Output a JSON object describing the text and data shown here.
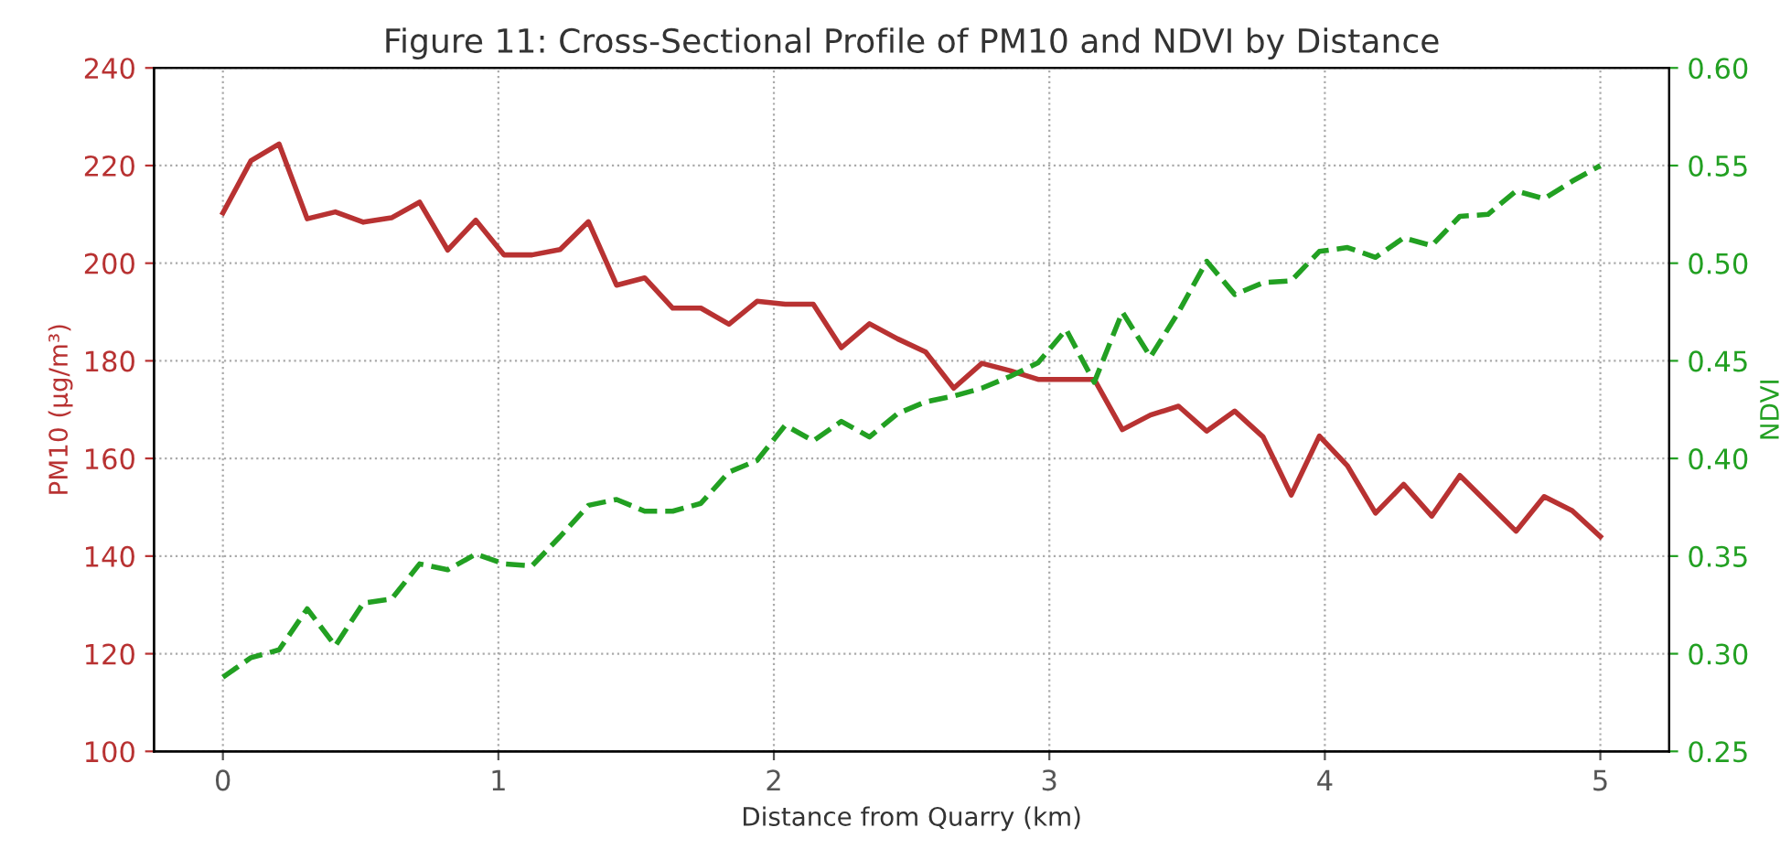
{
  "chart_data": {
    "type": "line",
    "title": "Figure 11: Cross-Sectional Profile of PM10 and NDVI by Distance",
    "xlabel": "Distance from Quarry (km)",
    "ylabel": "PM10 (µg/m³)",
    "y2label": "NDVI",
    "x": [
      0,
      0.102,
      0.204,
      0.306,
      0.408,
      0.51,
      0.612,
      0.714,
      0.816,
      0.918,
      1.02,
      1.122,
      1.224,
      1.327,
      1.429,
      1.531,
      1.633,
      1.735,
      1.837,
      1.939,
      2.041,
      2.143,
      2.245,
      2.347,
      2.449,
      2.551,
      2.653,
      2.755,
      2.857,
      2.959,
      3.061,
      3.163,
      3.265,
      3.367,
      3.469,
      3.571,
      3.673,
      3.776,
      3.878,
      3.98,
      4.082,
      4.184,
      4.286,
      4.388,
      4.49,
      4.592,
      4.694,
      4.796,
      4.898,
      5
    ],
    "series": [
      {
        "color": "#b83232",
        "line_style": "solid",
        "values": [
          210.3,
          221,
          224.4,
          209.1,
          210.5,
          208.4,
          209.3,
          212.5,
          202.7,
          208.8,
          201.7,
          201.7,
          202.8,
          208.5,
          195.5,
          197,
          190.8,
          190.8,
          187.5,
          192.2,
          191.6,
          191.6,
          182.7,
          187.6,
          184.5,
          181.8,
          174.4,
          179.5,
          178,
          176.2,
          176.2,
          176.2,
          165.9,
          168.9,
          170.7,
          165.6,
          169.7,
          164.4,
          152.5,
          164.6,
          158.5,
          148.8,
          154.7,
          148.2,
          156.5,
          150.8,
          145.1,
          152.2,
          149.3,
          144
        ]
      },
      {
        "color": "#22a022",
        "line_style": "dashed",
        "axis": "y2",
        "values": [
          0.288,
          0.298,
          0.302,
          0.323,
          0.304,
          0.326,
          0.328,
          0.346,
          0.343,
          0.351,
          0.346,
          0.345,
          0.36,
          0.376,
          0.379,
          0.373,
          0.373,
          0.377,
          0.393,
          0.399,
          0.417,
          0.409,
          0.419,
          0.411,
          0.423,
          0.429,
          0.432,
          0.436,
          0.442,
          0.449,
          0.466,
          0.439,
          0.475,
          0.452,
          0.475,
          0.501,
          0.484,
          0.49,
          0.491,
          0.506,
          0.508,
          0.503,
          0.513,
          0.509,
          0.524,
          0.525,
          0.537,
          0.533,
          0.542,
          0.55
        ]
      }
    ],
    "xlim": [
      -0.25,
      5.25
    ],
    "xticks": [
      0,
      1,
      2,
      3,
      4,
      5
    ],
    "ylim": [
      100,
      240
    ],
    "yticks": [
      100,
      120,
      140,
      160,
      180,
      200,
      220,
      240
    ],
    "y2lim": [
      0.25,
      0.6
    ],
    "y2ticks": [
      {
        "value": 0.25,
        "label": "0.25"
      },
      {
        "value": 0.3,
        "label": "0.30"
      },
      {
        "value": 0.35,
        "label": "0.35"
      },
      {
        "value": 0.4,
        "label": "0.40"
      },
      {
        "value": 0.45,
        "label": "0.45"
      },
      {
        "value": 0.5,
        "label": "0.50"
      },
      {
        "value": 0.55,
        "label": "0.55"
      },
      {
        "value": 0.6,
        "label": "0.60"
      }
    ],
    "grid": true,
    "legend": false
  }
}
